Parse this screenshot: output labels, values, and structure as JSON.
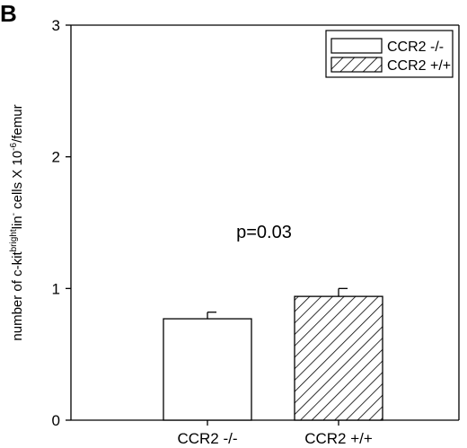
{
  "panel_label": "B",
  "chart_data": {
    "type": "bar",
    "categories": [
      "CCR2 -/-",
      "CCR2 +/+"
    ],
    "values": [
      0.77,
      0.94
    ],
    "error": [
      0.05,
      0.06
    ],
    "fills": [
      "solid-white",
      "diagonal-hatch"
    ],
    "ylabel": {
      "prefix": "number of c-kit",
      "sup1": "bright",
      "mid": "lin",
      "sup2": "-",
      "mid2": " cells X 10",
      "sup3": "-6",
      "suffix": "/femur"
    },
    "ylim": [
      0,
      3
    ],
    "yticks": [
      "0",
      "1",
      "2",
      "3"
    ],
    "annotation": "p=0.03",
    "legend": {
      "entries": [
        "CCR2 -/-",
        "CCR2 +/+"
      ],
      "position": "top-right"
    },
    "grid": false
  }
}
